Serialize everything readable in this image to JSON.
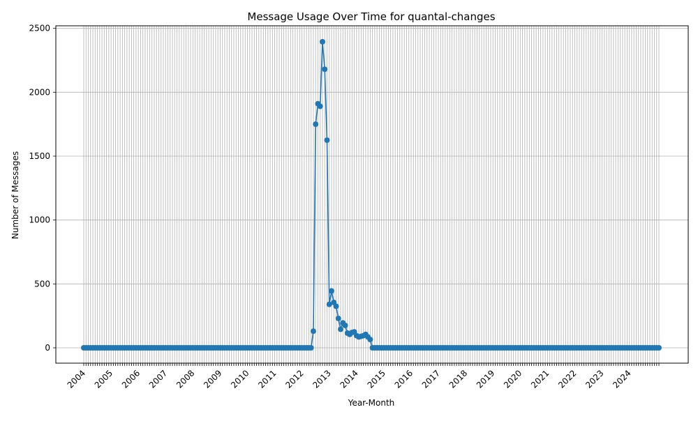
{
  "chart_data": {
    "type": "line",
    "title": "Message Usage Over Time for quantal-changes",
    "xlabel": "Year-Month",
    "ylabel": "Number of Messages",
    "ylim": [
      -120,
      2520
    ],
    "yticks": [
      0,
      500,
      1000,
      1500,
      2000,
      2500
    ],
    "year_labels": [
      "2004",
      "2005",
      "2006",
      "2007",
      "2008",
      "2009",
      "2010",
      "2011",
      "2012",
      "2013",
      "2014",
      "2015",
      "2016",
      "2017",
      "2018",
      "2019",
      "2020",
      "2021",
      "2022",
      "2023",
      "2024"
    ],
    "grid": true,
    "color": "#1f77b4",
    "series": [
      {
        "start": "2004-01",
        "values": [
          0,
          0,
          0,
          0,
          0,
          0,
          0,
          0,
          0,
          0,
          0,
          0,
          0,
          0,
          0,
          0,
          0,
          0,
          0,
          0,
          0,
          0,
          0,
          0,
          0,
          0,
          0,
          0,
          0,
          0,
          0,
          0,
          0,
          0,
          0,
          0,
          0,
          0,
          0,
          0,
          0,
          0,
          0,
          0,
          0,
          0,
          0,
          0,
          0,
          0,
          0,
          0,
          0,
          0,
          0,
          0,
          0,
          0,
          0,
          0,
          0,
          0,
          0,
          0,
          0,
          0,
          0,
          0,
          0,
          0,
          0,
          0,
          0,
          0,
          0,
          0,
          0,
          0,
          0,
          0,
          0,
          0,
          0,
          0,
          0,
          0,
          0,
          0,
          0,
          0,
          0,
          0,
          0,
          0,
          0,
          0,
          0,
          0,
          0,
          0,
          0,
          0,
          0,
          0,
          0,
          0,
          0,
          0,
          0,
          0,
          0,
          0,
          0,
          0,
          0,
          0,
          0,
          0,
          0,
          0,
          0,
          0,
          0,
          0,
          0,
          0,
          0,
          0,
          0,
          0,
          0,
          0,
          0,
          0,
          0,
          0,
          0,
          0,
          0,
          0,
          0,
          0,
          0,
          0,
          0,
          0,
          0,
          0,
          0,
          0,
          0,
          0,
          0,
          0,
          0,
          0,
          0,
          0,
          0,
          0,
          0,
          0,
          0,
          0,
          0,
          0,
          0,
          0,
          0,
          0,
          0,
          0,
          0,
          0,
          0,
          0,
          0,
          0,
          0,
          0,
          0,
          0,
          0,
          0,
          0,
          0,
          0,
          0,
          0,
          0,
          0,
          0,
          0,
          0,
          0,
          0,
          0,
          0,
          0,
          0,
          0,
          0,
          0,
          0,
          0,
          0,
          0,
          0,
          0,
          0,
          0,
          0,
          0,
          0,
          0,
          0,
          0,
          0,
          0,
          0,
          0,
          0,
          0,
          0,
          0,
          0,
          0,
          0,
          0,
          0,
          0,
          0,
          0,
          0,
          0,
          0,
          0,
          0,
          0,
          0,
          0,
          0,
          0,
          0,
          0,
          0,
          0,
          0,
          0,
          0,
          0,
          0,
          0,
          0,
          0,
          0,
          0,
          0,
          0,
          0,
          0,
          0,
          0,
          0,
          0,
          0
        ]
      }
    ],
    "x_months": [
      "2012-04",
      "2012-05",
      "2012-06",
      "2012-07",
      "2012-08",
      "2012-09",
      "2012-10",
      "2012-11",
      "2012-12",
      "2013-01",
      "2013-02",
      "2013-03",
      "2013-04",
      "2013-05",
      "2013-06",
      "2013-07",
      "2013-08",
      "2013-09",
      "2013-10",
      "2013-11",
      "2013-12",
      "2014-01",
      "2014-02",
      "2014-03",
      "2014-04",
      "2014-05",
      "2014-06",
      "2014-07",
      "2014-08",
      "2014-09",
      "2014-10",
      "2014-11",
      "2014-12"
    ],
    "y_values": [
      0,
      0,
      130,
      1750,
      1910,
      1890,
      2395,
      2180,
      1625,
      340,
      445,
      355,
      325,
      230,
      145,
      195,
      175,
      115,
      105,
      120,
      125,
      95,
      85,
      90,
      95,
      105,
      85,
      65,
      0,
      0,
      0,
      0,
      0
    ]
  }
}
